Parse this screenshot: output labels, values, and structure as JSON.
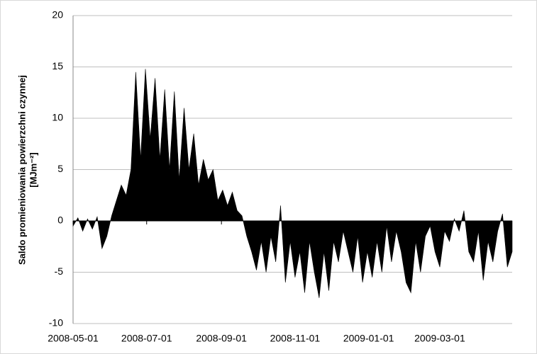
{
  "chart_data": {
    "type": "area",
    "ylabel": [
      "Saldo promieniowania powierzchni czynnej",
      "[MJm⁻²]"
    ],
    "x": [
      "2008-05-01",
      "2008-05-05",
      "2008-05-09",
      "2008-05-13",
      "2008-05-17",
      "2008-05-21",
      "2008-05-25",
      "2008-05-29",
      "2008-06-02",
      "2008-06-06",
      "2008-06-10",
      "2008-06-14",
      "2008-06-18",
      "2008-06-22",
      "2008-06-26",
      "2008-06-30",
      "2008-07-04",
      "2008-07-08",
      "2008-07-12",
      "2008-07-16",
      "2008-07-20",
      "2008-07-24",
      "2008-07-28",
      "2008-08-01",
      "2008-08-05",
      "2008-08-09",
      "2008-08-13",
      "2008-08-17",
      "2008-08-21",
      "2008-08-25",
      "2008-08-29",
      "2008-09-02",
      "2008-09-06",
      "2008-09-10",
      "2008-09-14",
      "2008-09-18",
      "2008-09-22",
      "2008-09-26",
      "2008-09-30",
      "2008-10-04",
      "2008-10-08",
      "2008-10-12",
      "2008-10-16",
      "2008-10-20",
      "2008-10-24",
      "2008-10-28",
      "2008-11-01",
      "2008-11-05",
      "2008-11-09",
      "2008-11-13",
      "2008-11-17",
      "2008-11-21",
      "2008-11-25",
      "2008-11-29",
      "2008-12-03",
      "2008-12-07",
      "2008-12-11",
      "2008-12-15",
      "2008-12-19",
      "2008-12-23",
      "2008-12-27",
      "2008-12-31",
      "2009-01-04",
      "2009-01-08",
      "2009-01-12",
      "2009-01-16",
      "2009-01-20",
      "2009-01-24",
      "2009-01-28",
      "2009-02-01",
      "2009-02-05",
      "2009-02-09",
      "2009-02-13",
      "2009-02-17",
      "2009-02-21",
      "2009-02-25",
      "2009-03-01",
      "2009-03-05",
      "2009-03-09",
      "2009-03-13",
      "2009-03-17",
      "2009-03-21",
      "2009-03-25",
      "2009-03-29",
      "2009-04-02",
      "2009-04-06",
      "2009-04-10",
      "2009-04-14",
      "2009-04-18",
      "2009-04-22",
      "2009-04-26",
      "2009-04-30"
    ],
    "values": [
      -0.5,
      0.3,
      -1,
      0.2,
      -0.8,
      0.4,
      -2.7,
      -1.5,
      0.5,
      2,
      3.5,
      2.5,
      5,
      14.5,
      6,
      14.8,
      8,
      13.9,
      6,
      12.8,
      5,
      12.6,
      4,
      11,
      5,
      8.5,
      3.5,
      6,
      4,
      5,
      2,
      3,
      1.5,
      2.8,
      1,
      0.5,
      -1.5,
      -3,
      -4.8,
      -2,
      -5,
      -1.5,
      -4,
      1.5,
      -6,
      -2,
      -5.5,
      -3,
      -7,
      -2,
      -5,
      -7.5,
      -3,
      -6.8,
      -2,
      -4,
      -1,
      -3,
      -5,
      -1.5,
      -6,
      -3,
      -5.5,
      -2,
      -5,
      -0.5,
      -4,
      -1,
      -3,
      -6,
      -7,
      -2,
      -5,
      -1.5,
      -0.5,
      -3,
      -4.5,
      -1,
      -2,
      0.2,
      -1,
      1,
      -3,
      -4,
      -1,
      -5.8,
      -2,
      -4,
      -1,
      0.7,
      -4.5,
      -3
    ],
    "color": "#000000",
    "xlim": [
      "2008-05-01",
      "2009-04-30"
    ],
    "xticks": [
      "2008-05-01",
      "2008-07-01",
      "2008-09-01",
      "2008-11-01",
      "2009-01-01",
      "2009-03-01"
    ],
    "ylim": [
      -10,
      20
    ],
    "yticks": [
      -10,
      -5,
      0,
      5,
      10,
      15,
      20
    ],
    "grid": true
  }
}
